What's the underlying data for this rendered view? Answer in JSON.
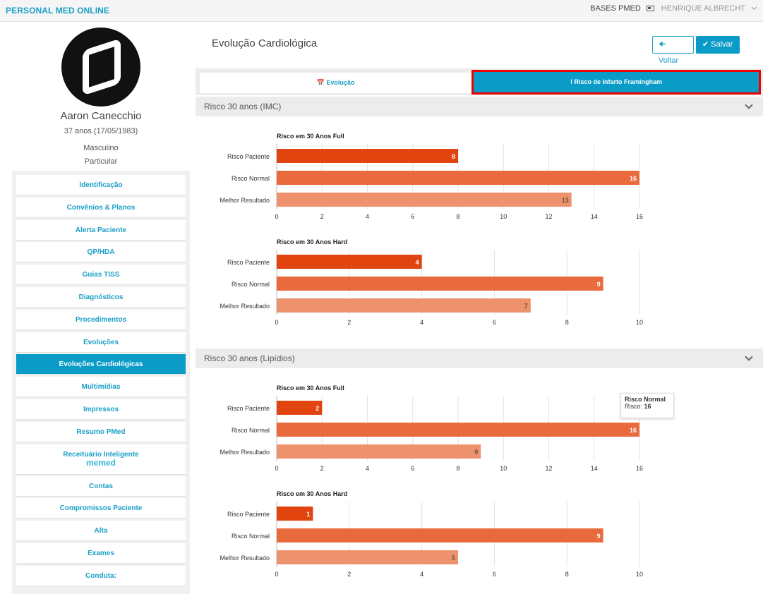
{
  "topbar": {
    "brand": "PERSONAL MED ONLINE",
    "bases": "BASES PMED",
    "user": "HENRIQUE ALBRECHT"
  },
  "patient": {
    "name": "Aaron Canecchio",
    "age": "37 anos (17/05/1983)",
    "sex": "Masculino",
    "plan": "Particular"
  },
  "menu": [
    {
      "label": "Identificação"
    },
    {
      "label": "Convênios & Planos"
    },
    {
      "label": "Alerta Paciente"
    },
    {
      "label": "QP/HDA"
    },
    {
      "label": "Guias TISS"
    },
    {
      "label": "Diagnósticos"
    },
    {
      "label": "Procedimentos"
    },
    {
      "label": "Evoluções"
    },
    {
      "label": "Evoluções Cardiológicas",
      "active": true
    },
    {
      "label": "Multimídias"
    },
    {
      "label": "Impressos"
    },
    {
      "label": "Resumo PMed"
    },
    {
      "label": "Receituário Inteligente",
      "sub": "memed"
    },
    {
      "label": "Contas"
    },
    {
      "label": "Compromissos Paciente"
    },
    {
      "label": "Alta"
    },
    {
      "label": "Exames"
    },
    {
      "label": "Conduta:"
    }
  ],
  "page": {
    "title": "Evolução Cardiológica",
    "back_label": "Voltar",
    "save_label": "Salvar",
    "tab_evolucao": "Evolução",
    "tab_risco": "Risco de Infarto Framingham"
  },
  "sections": {
    "imc": "Risco 30 anos (IMC)",
    "lipidios": "Risco 30 anos (Lipídios)"
  },
  "tooltip": {
    "title": "Risco Normal",
    "label": "Risco:",
    "value": "16"
  },
  "colors": {
    "paciente": "#e1440f",
    "normal": "#e96a3d",
    "melhor": "#ee916d",
    "accent": "#0a9bc6"
  },
  "chart_data": [
    {
      "type": "bar",
      "orientation": "horizontal",
      "title": "Risco em 30 Anos Full",
      "categories": [
        "Risco Paciente",
        "Risco Normal",
        "Melhor Resultado"
      ],
      "values": [
        8,
        16,
        13
      ],
      "xlim": [
        0,
        16
      ],
      "ticks": [
        0,
        2,
        4,
        6,
        8,
        10,
        12,
        14,
        16
      ]
    },
    {
      "type": "bar",
      "orientation": "horizontal",
      "title": "Risco em 30 Anos Hard",
      "categories": [
        "Risco Paciente",
        "Risco Normal",
        "Melhor Resultado"
      ],
      "values": [
        4,
        9,
        7
      ],
      "xlim": [
        0,
        10
      ],
      "ticks": [
        0,
        2,
        4,
        6,
        8,
        10
      ]
    },
    {
      "type": "bar",
      "orientation": "horizontal",
      "title": "Risco em 30 Anos Full",
      "categories": [
        "Risco Paciente",
        "Risco Normal",
        "Melhor Resultado"
      ],
      "values": [
        2,
        16,
        9
      ],
      "xlim": [
        0,
        16
      ],
      "ticks": [
        0,
        2,
        4,
        6,
        8,
        10,
        12,
        14,
        16
      ]
    },
    {
      "type": "bar",
      "orientation": "horizontal",
      "title": "Risco em 30 Anos Hard",
      "categories": [
        "Risco Paciente",
        "Risco Normal",
        "Melhor Resultado"
      ],
      "values": [
        1,
        9,
        5
      ],
      "xlim": [
        0,
        10
      ],
      "ticks": [
        0,
        2,
        4,
        6,
        8,
        10
      ]
    }
  ]
}
